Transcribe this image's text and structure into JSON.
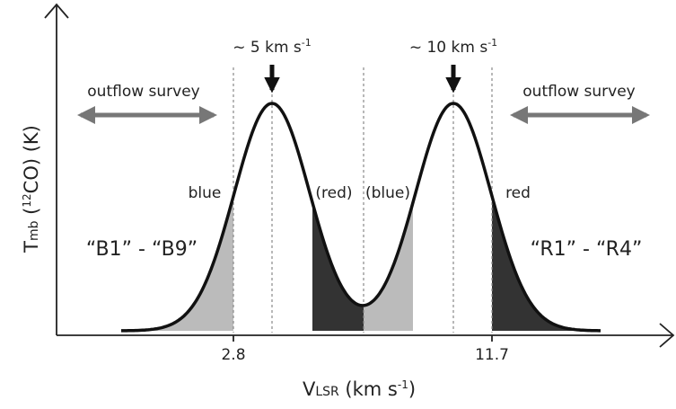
{
  "velocity_labels": [
    {
      "text": "~ 5 km s",
      "exponent": "-1"
    },
    {
      "text": "~ 10 km s",
      "exponent": "-1"
    }
  ],
  "survey_labels": [
    "outflow survey",
    "outflow survey"
  ],
  "range_labels": [
    "blue",
    "(red)",
    "(blue)",
    "red"
  ],
  "group_labels": [
    "“B1” - “B9”",
    "“R1” - “R4”"
  ],
  "x_tick_labels": [
    "2.8",
    "11.7"
  ],
  "x_axis": {
    "main": "V",
    "sub": "LSR",
    "rest": " (km s",
    "sup": "-1",
    "end": ")"
  },
  "y_axis": {
    "main": "T",
    "sub": "mb",
    "open": " (",
    "sup": "12",
    "rest": "CO) (K)"
  }
}
